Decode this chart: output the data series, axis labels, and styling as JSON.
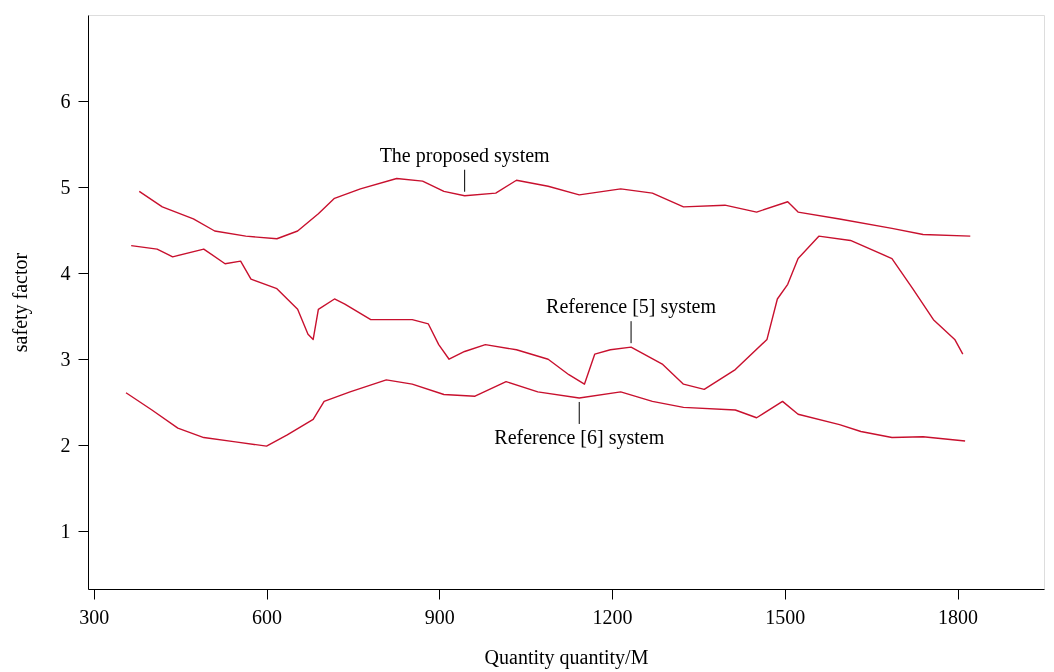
{
  "chart_data": {
    "type": "line",
    "xlabel": "Quantity quantity/M",
    "ylabel": "safety factor",
    "xlim": [
      290,
      1950
    ],
    "ylim": [
      0.33,
      7
    ],
    "xticks": [
      300,
      600,
      900,
      1200,
      1500,
      1800
    ],
    "yticks": [
      1,
      2,
      3,
      4,
      5,
      6
    ],
    "series": [
      {
        "name": "The proposed system",
        "color": "#c8102e",
        "x": [
          379,
          419,
          473,
          510,
          564,
          618,
          654,
          690,
          718,
          763,
          826,
          871,
          908,
          944,
          998,
          1034,
          1089,
          1143,
          1215,
          1270,
          1324,
          1396,
          1451,
          1505,
          1523,
          1595,
          1686,
          1740,
          1822
        ],
        "values": [
          4.95,
          4.77,
          4.63,
          4.49,
          4.43,
          4.4,
          4.49,
          4.69,
          4.87,
          4.98,
          5.1,
          5.07,
          4.95,
          4.9,
          4.93,
          5.08,
          5.01,
          4.91,
          4.98,
          4.93,
          4.77,
          4.79,
          4.71,
          4.83,
          4.71,
          4.63,
          4.52,
          4.45,
          4.43
        ]
      },
      {
        "name": "Reference [5] system",
        "color": "#c8102e",
        "x": [
          365,
          410,
          437,
          491,
          528,
          555,
          573,
          618,
          654,
          672,
          681,
          690,
          718,
          736,
          781,
          853,
          881,
          899,
          917,
          944,
          980,
          1034,
          1089,
          1125,
          1152,
          1170,
          1197,
          1233,
          1288,
          1324,
          1360,
          1414,
          1469,
          1487,
          1505,
          1523,
          1559,
          1614,
          1686,
          1722,
          1758,
          1795,
          1809
        ],
        "values": [
          4.32,
          4.28,
          4.19,
          4.28,
          4.11,
          4.14,
          3.93,
          3.82,
          3.58,
          3.29,
          3.23,
          3.58,
          3.7,
          3.64,
          3.46,
          3.46,
          3.41,
          3.17,
          3.0,
          3.09,
          3.17,
          3.11,
          3.0,
          2.82,
          2.71,
          3.06,
          3.11,
          3.14,
          2.94,
          2.71,
          2.65,
          2.88,
          3.23,
          3.7,
          3.87,
          4.17,
          4.43,
          4.38,
          4.17,
          3.82,
          3.46,
          3.23,
          3.06
        ]
      },
      {
        "name": "Reference [6] system",
        "color": "#c8102e",
        "x": [
          356,
          401,
          446,
          491,
          546,
          600,
          636,
          681,
          700,
          745,
          808,
          853,
          908,
          962,
          1016,
          1071,
          1143,
          1215,
          1270,
          1324,
          1414,
          1451,
          1496,
          1523,
          1595,
          1632,
          1686,
          1740,
          1813
        ],
        "values": [
          2.61,
          2.41,
          2.2,
          2.09,
          2.04,
          1.99,
          2.12,
          2.3,
          2.51,
          2.62,
          2.76,
          2.71,
          2.59,
          2.57,
          2.74,
          2.62,
          2.55,
          2.62,
          2.51,
          2.44,
          2.41,
          2.32,
          2.51,
          2.36,
          2.24,
          2.16,
          2.09,
          2.1,
          2.05
        ]
      }
    ]
  }
}
